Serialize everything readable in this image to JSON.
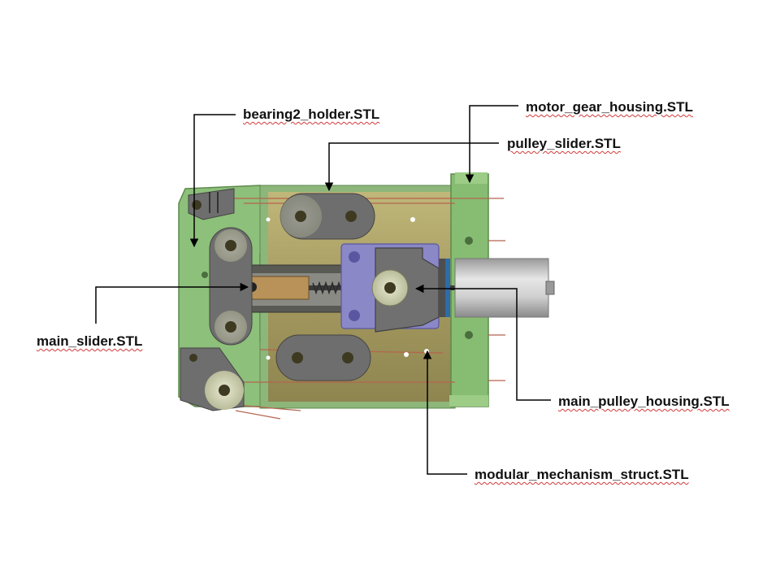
{
  "labels": {
    "bearing2_holder": "bearing2_holder.STL",
    "motor_gear_housing": "motor_gear_housing.STL",
    "pulley_slider": "pulley_slider.STL",
    "main_slider": "main_slider.STL",
    "main_pulley_housing": "main_pulley_housing.STL",
    "modular_mechanism_struct": "modular_mechanism_struct.STL"
  },
  "colors": {
    "frame_green": "#8dc07a",
    "link_gray": "#6e6e6e",
    "roller_cream": "#d7d9bc",
    "block_purple": "#8b88c8",
    "motor_steel": "#c8c8c8",
    "wire_copper": "#b4654e",
    "leader_line": "#000000",
    "spellcheck_underline": "#d23a3a"
  }
}
